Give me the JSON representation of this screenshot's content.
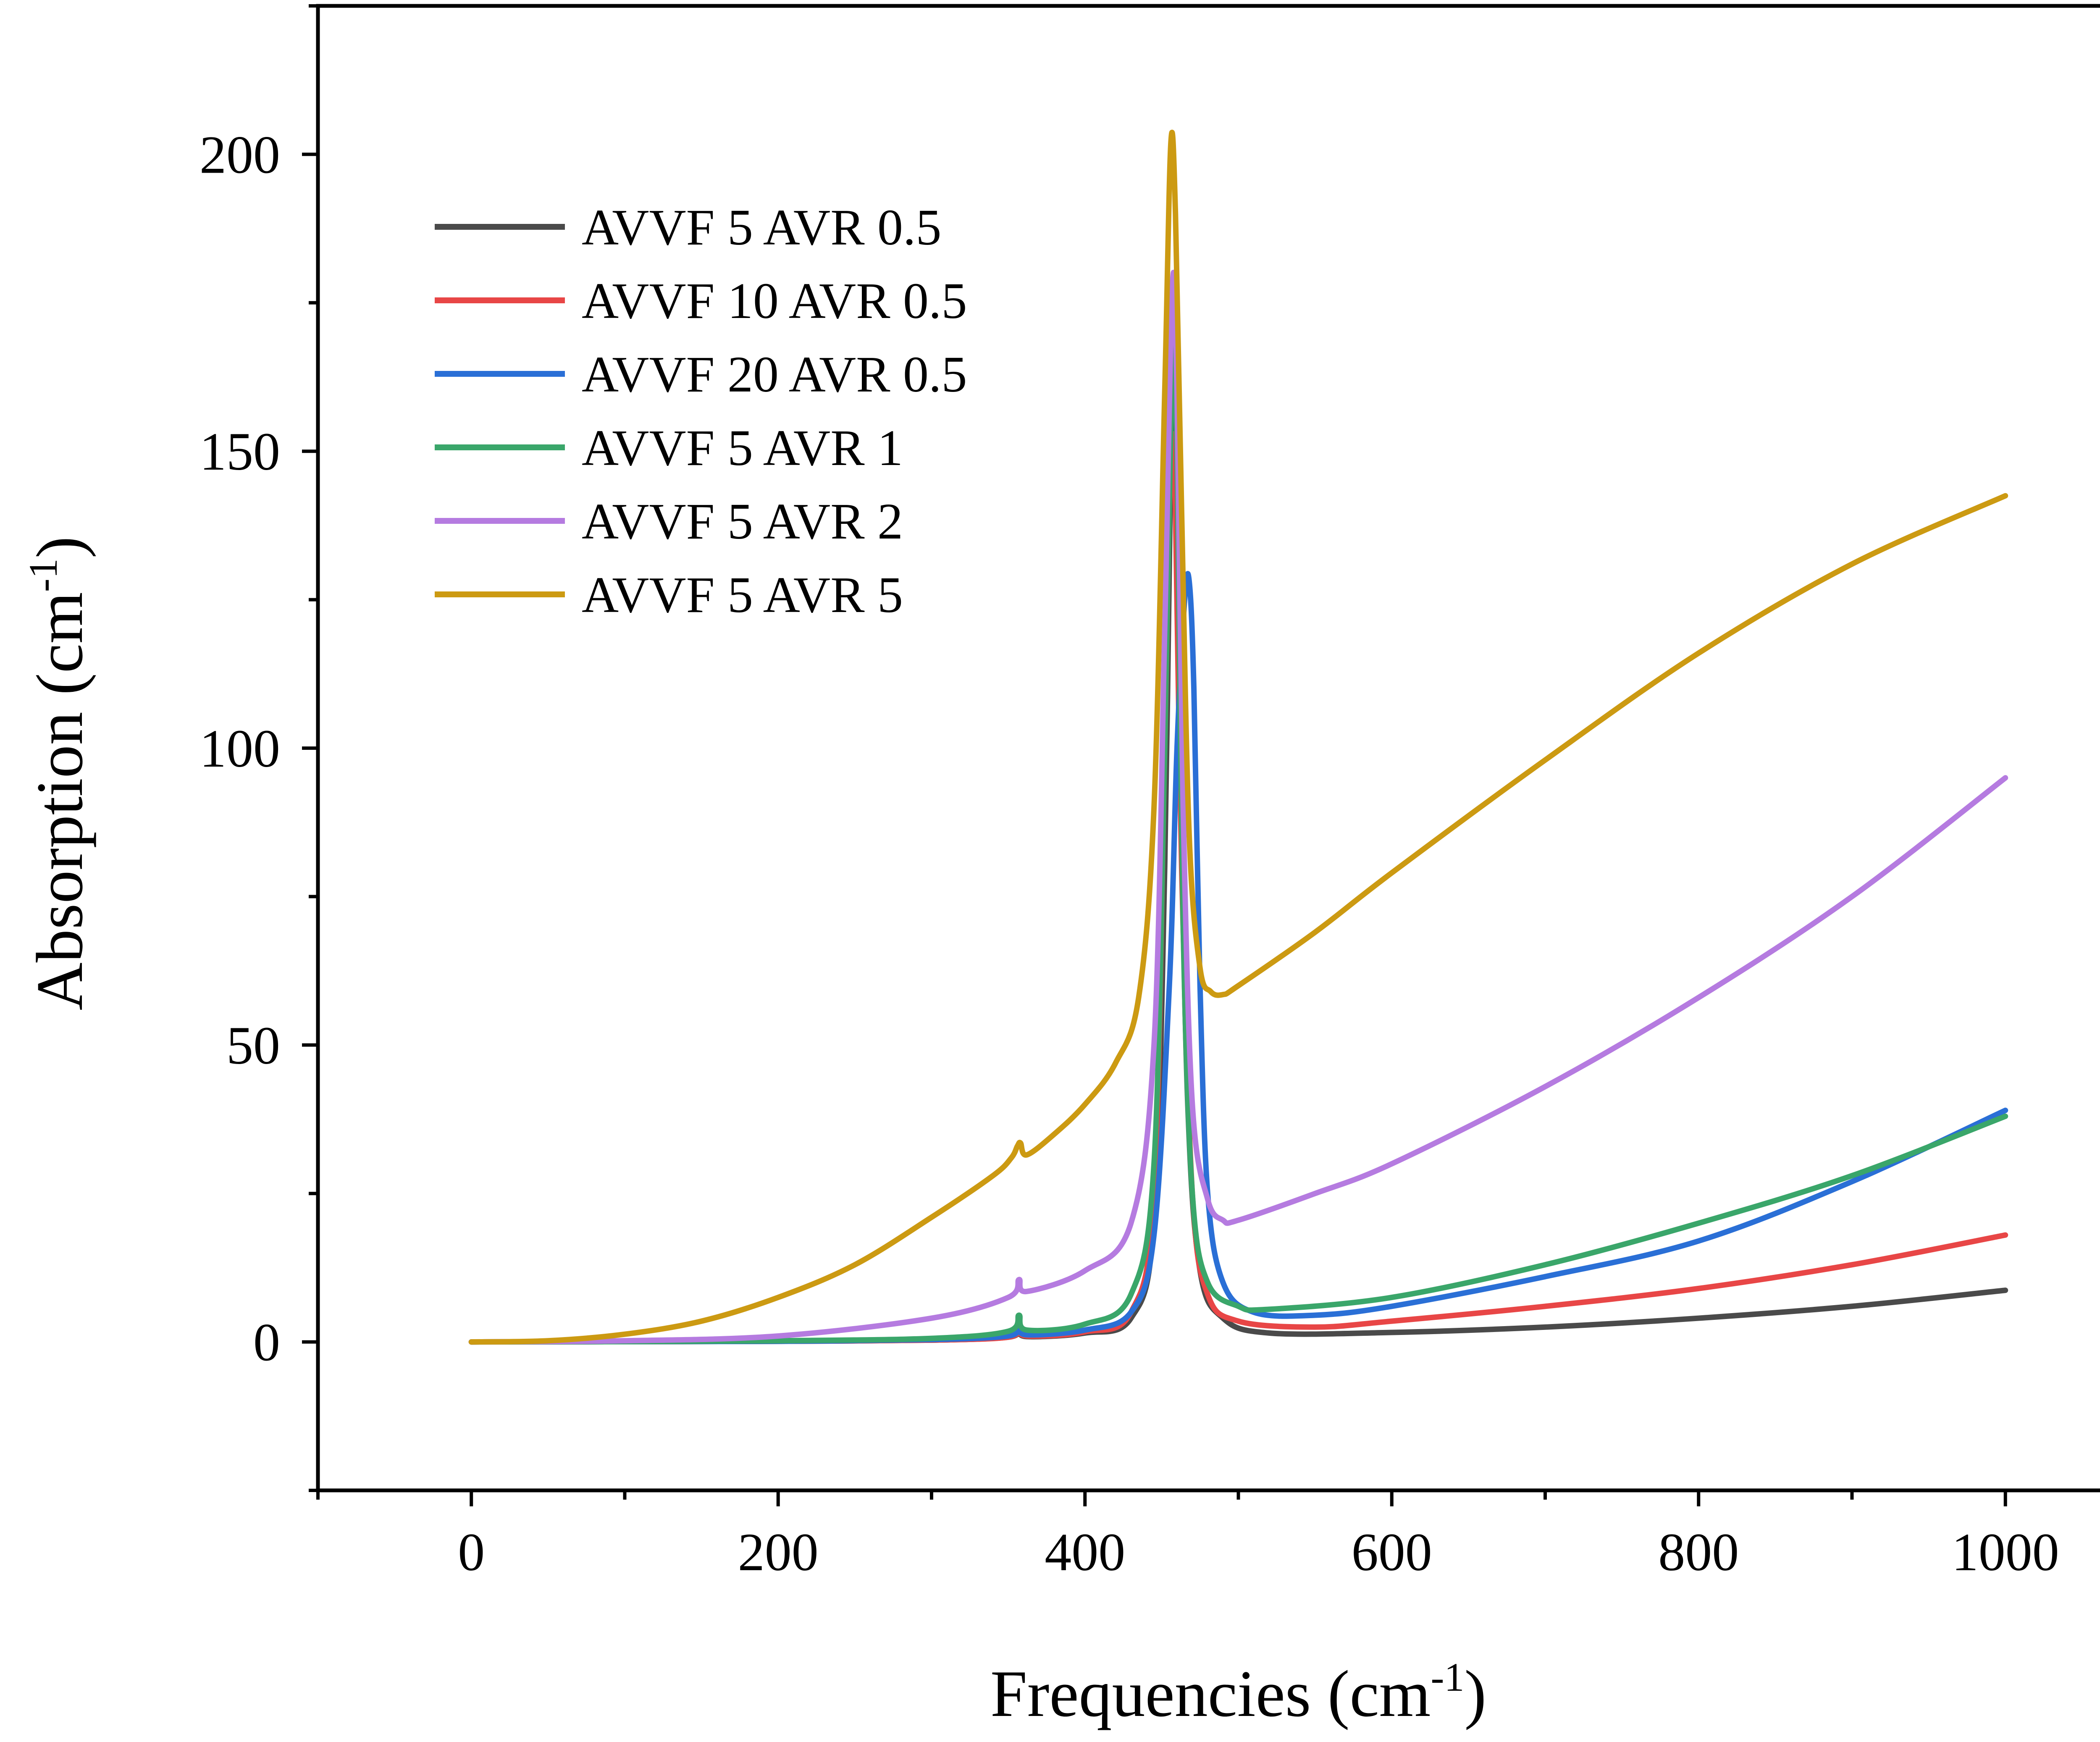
{
  "chart_data": {
    "type": "line",
    "title": "",
    "xlabel": "Frequencies (cm",
    "xlabel_sup": "-1",
    "xlabel_tail": ")",
    "ylabel": "Absorption (cm",
    "ylabel_sup": "-1",
    "ylabel_tail": ")",
    "xlim": [
      -100,
      1100
    ],
    "ylim": [
      -25,
      225
    ],
    "x_ticks": [
      "0",
      "200",
      "400",
      "600",
      "800",
      "1000"
    ],
    "y_ticks": [
      "0",
      "50",
      "100",
      "150",
      "200"
    ],
    "grid": false,
    "legend_position": "top-left",
    "series": [
      {
        "name": "AVVF 5 AVR 0.5",
        "color": "#4a4a4a",
        "points": [
          [
            0,
            0
          ],
          [
            100,
            0.05
          ],
          [
            200,
            0.1
          ],
          [
            300,
            0.3
          ],
          [
            350,
            0.8
          ],
          [
            357,
            2.0
          ],
          [
            362,
            0.9
          ],
          [
            400,
            1.5
          ],
          [
            430,
            4
          ],
          [
            445,
            20
          ],
          [
            452,
            80
          ],
          [
            456,
            150
          ],
          [
            458,
            155
          ],
          [
            462,
            100
          ],
          [
            467,
            40
          ],
          [
            475,
            12
          ],
          [
            490,
            4
          ],
          [
            520,
            1.5
          ],
          [
            600,
            1.6
          ],
          [
            700,
            2.5
          ],
          [
            800,
            4
          ],
          [
            900,
            6
          ],
          [
            1000,
            8.7
          ]
        ]
      },
      {
        "name": "AVVF 10 AVR 0.5",
        "color": "#e84646",
        "points": [
          [
            0,
            0
          ],
          [
            100,
            0.05
          ],
          [
            200,
            0.1
          ],
          [
            300,
            0.3
          ],
          [
            350,
            0.8
          ],
          [
            357,
            2.3
          ],
          [
            362,
            1.0
          ],
          [
            400,
            1.7
          ],
          [
            430,
            5
          ],
          [
            445,
            25
          ],
          [
            452,
            100
          ],
          [
            456,
            150
          ],
          [
            459,
            140
          ],
          [
            463,
            80
          ],
          [
            470,
            25
          ],
          [
            480,
            8
          ],
          [
            500,
            3.5
          ],
          [
            550,
            2.5
          ],
          [
            600,
            3.5
          ],
          [
            700,
            6
          ],
          [
            800,
            9
          ],
          [
            900,
            13
          ],
          [
            1000,
            18
          ]
        ]
      },
      {
        "name": "AVVF 20 AVR 0.5",
        "color": "#2a6fd6",
        "points": [
          [
            0,
            0
          ],
          [
            100,
            0.05
          ],
          [
            200,
            0.1
          ],
          [
            300,
            0.4
          ],
          [
            350,
            1.0
          ],
          [
            357,
            2.5
          ],
          [
            362,
            1.2
          ],
          [
            400,
            2
          ],
          [
            430,
            5
          ],
          [
            445,
            18
          ],
          [
            455,
            60
          ],
          [
            460,
            100
          ],
          [
            465,
            125
          ],
          [
            468,
            128
          ],
          [
            471,
            110
          ],
          [
            475,
            60
          ],
          [
            480,
            25
          ],
          [
            490,
            10
          ],
          [
            510,
            5
          ],
          [
            550,
            4.5
          ],
          [
            600,
            6
          ],
          [
            700,
            11
          ],
          [
            800,
            17
          ],
          [
            900,
            27
          ],
          [
            1000,
            39
          ]
        ]
      },
      {
        "name": "AVVF 5 AVR 1",
        "color": "#3aa66a",
        "points": [
          [
            0,
            0
          ],
          [
            100,
            0.05
          ],
          [
            200,
            0.2
          ],
          [
            300,
            0.6
          ],
          [
            350,
            1.8
          ],
          [
            357,
            4.5
          ],
          [
            362,
            2.0
          ],
          [
            400,
            3
          ],
          [
            430,
            8
          ],
          [
            445,
            30
          ],
          [
            452,
            100
          ],
          [
            457,
            168
          ],
          [
            460,
            150
          ],
          [
            464,
            70
          ],
          [
            470,
            25
          ],
          [
            480,
            10
          ],
          [
            500,
            6
          ],
          [
            520,
            5.5
          ],
          [
            600,
            7.5
          ],
          [
            700,
            13
          ],
          [
            800,
            20
          ],
          [
            900,
            28
          ],
          [
            1000,
            38
          ]
        ]
      },
      {
        "name": "AVVF 5 AVR 2",
        "color": "#b57be0",
        "points": [
          [
            0,
            0
          ],
          [
            100,
            0.2
          ],
          [
            200,
            1.0
          ],
          [
            300,
            4
          ],
          [
            350,
            7.5
          ],
          [
            357,
            10.5
          ],
          [
            362,
            8.5
          ],
          [
            400,
            12
          ],
          [
            430,
            20
          ],
          [
            445,
            50
          ],
          [
            452,
            120
          ],
          [
            457,
            178
          ],
          [
            460,
            160
          ],
          [
            464,
            90
          ],
          [
            470,
            40
          ],
          [
            480,
            24
          ],
          [
            490,
            20.5
          ],
          [
            500,
            20.5
          ],
          [
            550,
            25
          ],
          [
            600,
            30
          ],
          [
            700,
            43
          ],
          [
            800,
            58
          ],
          [
            900,
            75
          ],
          [
            1000,
            95
          ]
        ]
      },
      {
        "name": "AVVF 5 AVR 5",
        "color": "#cc9a12",
        "points": [
          [
            0,
            0
          ],
          [
            50,
            0.2
          ],
          [
            100,
            1.3
          ],
          [
            150,
            3.5
          ],
          [
            200,
            7.5
          ],
          [
            250,
            13
          ],
          [
            300,
            21
          ],
          [
            340,
            28
          ],
          [
            352,
            31
          ],
          [
            356,
            33
          ],
          [
            358,
            33.5
          ],
          [
            362,
            31.5
          ],
          [
            380,
            35
          ],
          [
            400,
            40
          ],
          [
            420,
            47
          ],
          [
            435,
            58
          ],
          [
            445,
            90
          ],
          [
            452,
            160
          ],
          [
            456,
            202
          ],
          [
            459,
            190
          ],
          [
            463,
            140
          ],
          [
            468,
            85
          ],
          [
            475,
            63
          ],
          [
            482,
            59
          ],
          [
            490,
            58.5
          ],
          [
            500,
            60
          ],
          [
            550,
            69
          ],
          [
            600,
            79
          ],
          [
            700,
            98
          ],
          [
            800,
            116
          ],
          [
            900,
            131
          ],
          [
            1000,
            142.5
          ]
        ]
      }
    ]
  }
}
